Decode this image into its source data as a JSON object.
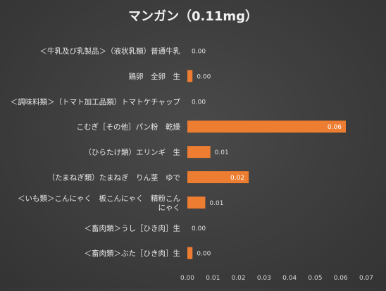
{
  "chart_data": {
    "type": "bar",
    "orientation": "horizontal",
    "title": "マンガン（0.11mg）",
    "xlabel": "",
    "ylabel": "",
    "categories": [
      "＜牛乳及び乳製品＞（液状乳類）普通牛乳",
      "鶏卵　全卵　生",
      "＜調味料類＞（トマト加工品類）トマトケチャップ",
      "こむぎ［その他］パン粉　乾燥",
      "（ひらたけ類）エリンギ　生",
      "（たまねぎ類）たまねぎ　りん茎　ゆで",
      "＜いも類＞こんにゃく　板こんにゃく　精粉こんにゃく",
      "＜畜肉類＞うし［ひき肉］生",
      "＜畜肉類＞ぶた［ひき肉］生"
    ],
    "category_lines": [
      [
        "＜牛乳及び乳製品＞（液状乳類）普通牛乳"
      ],
      [
        "鶏卵　全卵　生"
      ],
      [
        "＜調味料類＞（トマト加工品類）トマトケチャップ"
      ],
      [
        "こむぎ［その他］パン粉　乾燥"
      ],
      [
        "（ひらたけ類）エリンギ　生"
      ],
      [
        "（たまねぎ類）たまねぎ　りん茎　ゆで"
      ],
      [
        "＜いも類＞こんにゃく　板こんにゃく　精粉こん",
        "にゃく"
      ],
      [
        "＜畜肉類＞うし［ひき肉］生"
      ],
      [
        "＜畜肉類＞ぶた［ひき肉］生"
      ]
    ],
    "values": [
      0.0,
      0.002,
      0.0,
      0.062,
      0.009,
      0.024,
      0.007,
      0.0,
      0.002
    ],
    "data_labels": [
      "0.00",
      "0.00",
      "0.00",
      "0.06",
      "0.01",
      "0.02",
      "0.01",
      "0.00",
      "0.00"
    ],
    "xlim": [
      0,
      0.07
    ],
    "xticks": [
      0.0,
      0.01,
      0.02,
      0.03,
      0.04,
      0.05,
      0.06,
      0.07
    ],
    "xtick_labels": [
      "0.00",
      "0.01",
      "0.02",
      "0.03",
      "0.04",
      "0.05",
      "0.06",
      "0.07"
    ],
    "grid": false,
    "legend": "none",
    "bar_color": "#ed7d31",
    "background": "#3f3f3f"
  }
}
